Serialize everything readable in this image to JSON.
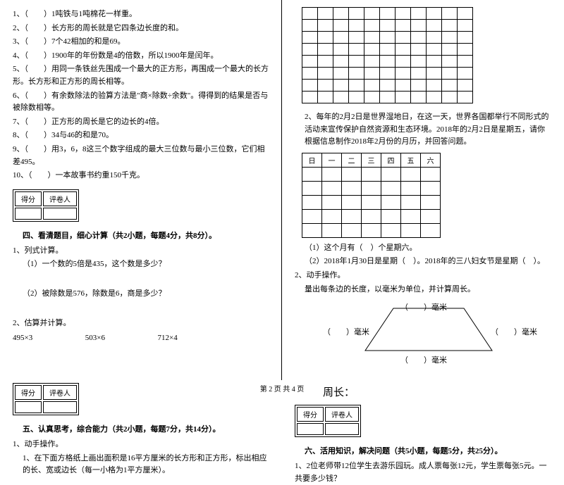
{
  "judge": {
    "q1": "1、（　　）1吨铁与1吨棉花一样重。",
    "q2": "2、（　　）长方形的周长就是它四条边长度的和。",
    "q3": "3、（　　）7个42相加的和是69。",
    "q4": "4、（　　）1900年的年份数是4的倍数，所以1900年是闰年。",
    "q5": "5、（　　）用同一条铁丝先围成一个最大的正方形，再围成一个最大的长方形。长方形和正方形的周长相等。",
    "q6": "6、（　　）有余数除法的验算方法是\"商×除数÷余数\"。得得到的结果是否与被除数相等。",
    "q7": "7、（　　）正方形的周长是它的边长的4倍。",
    "q8": "8、（　　）34与46的和是70。",
    "q9": "9、（　　）用3，6，8这三个数字组成的最大三位数与最小三位数，它们相差495。",
    "q10": "10、（　　）一本故事书约重150千克。"
  },
  "score": {
    "c1": "得分",
    "c2": "评卷人"
  },
  "sec4": {
    "title": "四、看清题目，细心计算（共2小题，每题4分，共8分）。",
    "p1": "1、列式计算。",
    "p1a": "（1）一个数的5倍是435，这个数是多少？",
    "p1b": "（2）被除数是576，除数是6，商是多少？",
    "p2": "2、估算并计算。",
    "c1": "495×3",
    "c2": "503×6",
    "c3": "712×4"
  },
  "sec5": {
    "title": "五、认真思考，综合能力（共2小题，每题7分，共14分）。",
    "p1": "1、动手操作。",
    "p1a": "1、在下面方格纸上画出面积是16平方厘米的长方形和正方形，标出相应的长、宽或边长（每一小格为1平方厘米）。",
    "p2": "2、每年的2月2日是世界湿地日，在这一天，世界各国都举行不同形式的活动来宣传保护自然资源和生态环境。2018年的2月2日是星期五，请你根据信息制作2018年2月份的月历，并回答问题。",
    "cal": [
      "日",
      "一",
      "二",
      "三",
      "四",
      "五",
      "六"
    ],
    "q2a": "（1）这个月有（　）个星期六。",
    "q2b": "（2）2018年1月30日是星期（　）。2018年的三八妇女节是星期（　）。",
    "p3": "2、动手操作。",
    "p3a": "量出每条边的长度，以毫米为单位，并计算周长。",
    "mm": "）毫米",
    "lp": "（",
    "zhou": "周长："
  },
  "sec6": {
    "title": "六、活用知识，解决问题（共5小题，每题5分，共25分）。",
    "q1": "1、2位老师带12位学生去游乐园玩。成人票每张12元，学生票每张5元。一共要多少钱？"
  },
  "footer": "第 2 页 共 4 页",
  "grid": {
    "rows": 8,
    "cols": 11
  }
}
